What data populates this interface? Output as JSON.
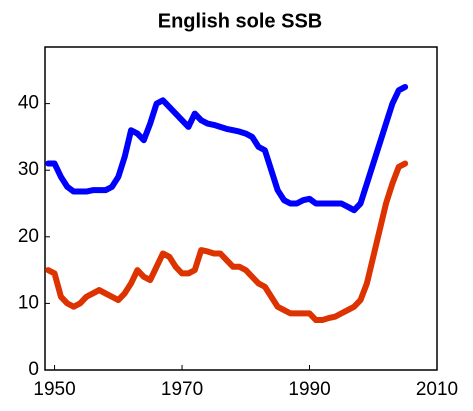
{
  "chart_data": {
    "type": "line",
    "title": "English sole SSB",
    "x": [
      1949,
      1950,
      1951,
      1952,
      1953,
      1954,
      1955,
      1956,
      1957,
      1958,
      1959,
      1960,
      1961,
      1962,
      1963,
      1964,
      1965,
      1966,
      1967,
      1968,
      1969,
      1970,
      1971,
      1972,
      1973,
      1974,
      1975,
      1976,
      1977,
      1978,
      1979,
      1980,
      1981,
      1982,
      1983,
      1984,
      1985,
      1986,
      1987,
      1988,
      1989,
      1990,
      1991,
      1992,
      1993,
      1994,
      1995,
      1996,
      1997,
      1998,
      1999,
      2000,
      2001,
      2002,
      2003,
      2004,
      2005
    ],
    "series": [
      {
        "color": "#0000ff",
        "values": [
          31,
          31,
          29,
          27.5,
          26.8,
          26.8,
          26.8,
          27,
          27,
          27,
          27.5,
          29,
          32,
          36,
          35.5,
          34.5,
          37,
          40,
          40.5,
          39.5,
          38.5,
          37.5,
          36.5,
          38.5,
          37.5,
          37,
          36.8,
          36.5,
          36.2,
          36,
          35.8,
          35.5,
          35,
          33.5,
          33,
          30,
          27,
          25.5,
          25,
          25,
          25.5,
          25.7,
          25,
          25,
          25,
          25,
          25,
          24.5,
          24,
          25,
          28,
          31,
          34,
          37,
          40,
          42,
          42.5
        ]
      },
      {
        "color": "#dd3300",
        "values": [
          15,
          14.5,
          11,
          10,
          9.5,
          10,
          11,
          11.5,
          12,
          11.5,
          11,
          10.5,
          11.5,
          13,
          15,
          14,
          13.5,
          15.5,
          17.5,
          17,
          15.5,
          14.5,
          14.5,
          15,
          18,
          17.8,
          17.5,
          17.5,
          16.5,
          15.5,
          15.5,
          15,
          14,
          13,
          12.5,
          11,
          9.5,
          9,
          8.5,
          8.5,
          8.5,
          8.5,
          7.5,
          7.5,
          7.8,
          8,
          8.5,
          9,
          9.5,
          10.5,
          13,
          17,
          21,
          25,
          28,
          30.5,
          31
        ]
      }
    ],
    "xlim": [
      1948.5,
      2010
    ],
    "xticks": [
      1950,
      1970,
      1990,
      2010
    ],
    "ylim": [
      0,
      48.5
    ],
    "yticks": [
      0,
      10,
      20,
      30,
      40
    ]
  }
}
